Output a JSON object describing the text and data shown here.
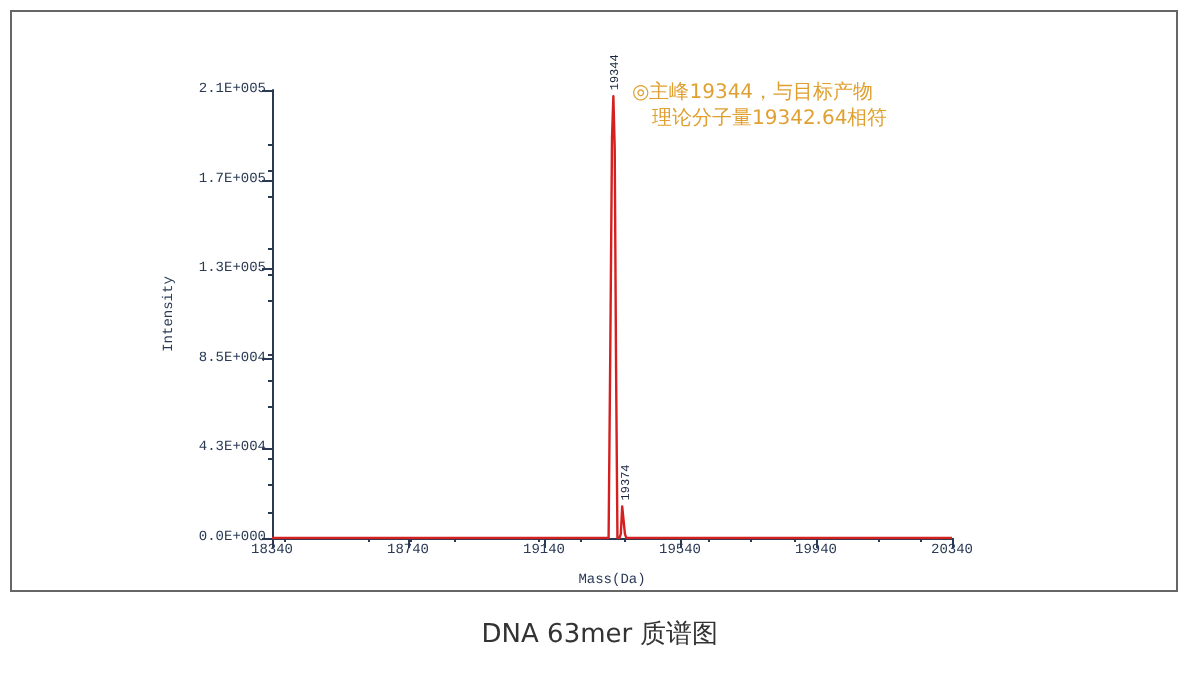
{
  "chart_data": {
    "type": "line",
    "title": "DNA 63mer 质谱图",
    "xlabel": "Mass(Da)",
    "ylabel": "Intensity",
    "x": [
      18340,
      19325,
      19330,
      19335,
      19340,
      19344,
      19348,
      19352,
      19356,
      19362,
      19366,
      19370,
      19374,
      19378,
      19382,
      20340
    ],
    "series": [
      {
        "color": "#d42020",
        "values": [
          0,
          0,
          0,
          90000,
          190000,
          210000,
          185000,
          80000,
          0,
          0,
          2000,
          15000,
          15000,
          2000,
          0,
          0
        ]
      }
    ],
    "xlim": [
      18340,
      20340
    ],
    "xticks": [
      18340,
      18740,
      19140,
      19540,
      19940,
      20340
    ],
    "ylim": [
      0,
      213000
    ],
    "yticks": [
      {
        "value": 0,
        "label": "0.0E+000"
      },
      {
        "value": 42600,
        "label": "4.3E+004"
      },
      {
        "value": 85200,
        "label": "8.5E+004"
      },
      {
        "value": 127800,
        "label": "1.3E+005"
      },
      {
        "value": 170400,
        "label": "1.7E+005"
      },
      {
        "value": 213000,
        "label": "2.1E+005"
      }
    ],
    "annotations": [
      {
        "text": "19344",
        "x": 19344,
        "y": 210000
      },
      {
        "text": "19374",
        "x": 19374,
        "y": 15000
      },
      "◎主峰19344，与目标产物",
      "理论分子量19342.64相符"
    ],
    "grid": false,
    "marker": "none",
    "line_style": "solid"
  }
}
